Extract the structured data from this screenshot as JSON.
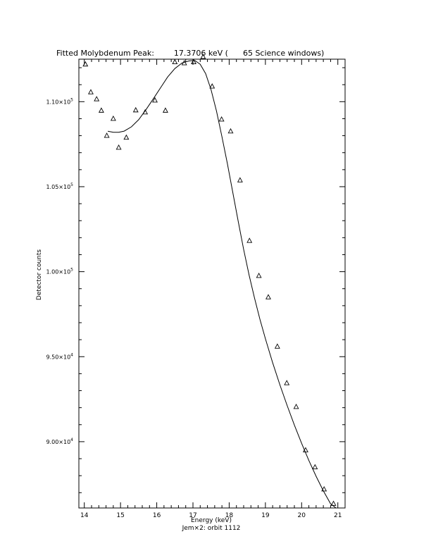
{
  "chart_data": {
    "type": "scatter",
    "title": "Fitted Molybdenum Peak:        17.3706 keV (      65 Science windows)",
    "xlabel": "Energy (keV)",
    "ylabel": "Detector counts",
    "subcaption": "Jem×2: orbit 1112",
    "xlim": [
      13.85,
      21.2
    ],
    "ylim": [
      86100,
      112500
    ],
    "x_ticks": [
      14,
      15,
      16,
      17,
      18,
      19,
      20,
      21
    ],
    "x_tick_labels": [
      "14",
      "15",
      "16",
      "17",
      "18",
      "19",
      "20",
      "21"
    ],
    "y_ticks": [
      90000,
      95000,
      100000,
      105000,
      110000
    ],
    "y_tick_labels": [
      {
        "mant": "9.00×10",
        "exp": "4"
      },
      {
        "mant": "9.50×10",
        "exp": "4"
      },
      {
        "mant": "1.00×10",
        "exp": "5"
      },
      {
        "mant": "1.05×10",
        "exp": "5"
      },
      {
        "mant": "1.10×10",
        "exp": "5"
      }
    ],
    "grid": false,
    "series": [
      {
        "kind": "points",
        "marker": "open-triangle",
        "x": [
          14.03,
          14.18,
          14.34,
          14.47,
          14.62,
          14.8,
          14.95,
          15.16,
          15.42,
          15.68,
          15.95,
          16.24,
          16.5,
          16.76,
          17.02,
          17.28,
          17.53,
          17.79,
          18.04,
          18.3,
          18.56,
          18.82,
          19.08,
          19.33,
          19.59,
          19.85,
          20.11,
          20.37,
          20.62,
          20.88
        ],
        "y": [
          112200,
          110560,
          110150,
          109480,
          108000,
          109000,
          107300,
          107890,
          109500,
          109380,
          110080,
          109480,
          112330,
          112270,
          112330,
          112640,
          110900,
          108960,
          108260,
          105380,
          101820,
          99760,
          98500,
          95600,
          93450,
          92050,
          89500,
          88500,
          87200,
          86350
        ]
      },
      {
        "kind": "fit",
        "x": [
          14.65,
          14.8,
          14.95,
          15.1,
          15.3,
          15.5,
          15.7,
          15.9,
          16.1,
          16.3,
          16.5,
          16.7,
          16.9,
          17.05,
          17.2,
          17.35,
          17.5,
          17.65,
          17.8,
          17.95,
          18.1,
          18.25,
          18.4,
          18.55,
          18.7,
          18.85,
          19.0,
          19.2,
          19.4,
          19.6,
          19.8,
          20.0,
          20.2,
          20.4,
          20.6,
          20.8,
          20.95
        ],
        "y": [
          108260,
          108200,
          108200,
          108270,
          108520,
          108940,
          109520,
          110150,
          110800,
          111450,
          111950,
          112280,
          112400,
          112420,
          112200,
          111650,
          110700,
          109450,
          107950,
          106350,
          104650,
          102950,
          101300,
          99800,
          98450,
          97200,
          96050,
          94650,
          93350,
          92130,
          90980,
          89900,
          88890,
          87960,
          87110,
          86350,
          85840
        ]
      }
    ]
  }
}
